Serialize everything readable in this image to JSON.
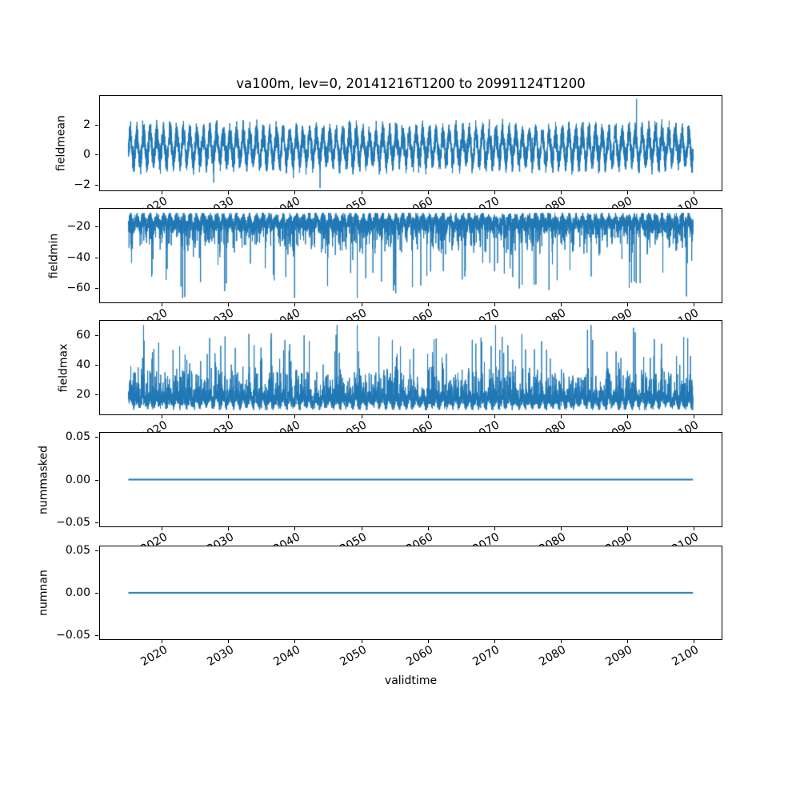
{
  "title": "va100m, lev=0, 20141216T1200 to 20991124T1200",
  "chart_data": {
    "type": "line",
    "title": "va100m, lev=0, 20141216T1200 to 20991124T1200",
    "xlabel": "validtime",
    "legend": "none",
    "grid": false,
    "line_color": "#1f77b4",
    "x_tick_labels": [
      "2020",
      "2030",
      "2040",
      "2050",
      "2060",
      "2070",
      "2080",
      "2090",
      "2100"
    ],
    "x_tick_values": [
      2020,
      2030,
      2040,
      2050,
      2060,
      2070,
      2080,
      2090,
      2100
    ],
    "xlim": [
      2010.7,
      2104.2
    ],
    "x_data_range": [
      2014.96,
      2099.9
    ],
    "x_tick_rotation_deg": 30,
    "n_points": 8000,
    "subplots": [
      {
        "ylabel": "fieldmean",
        "ytick_values": [
          -2,
          0,
          2
        ],
        "ytick_labels": [
          "−2",
          "0",
          "2"
        ],
        "ylim": [
          -2.4,
          3.95
        ],
        "series": {
          "kind": "seasonal_noise",
          "seed": 11,
          "base": 0.5,
          "seasonal_amp": 0.9,
          "noise_amp": 1.05,
          "med_prob": 0.012,
          "med_scale": 0.9,
          "med_signed": true,
          "big_prob": 0,
          "big_base": 0,
          "big_scale": 0,
          "clip": [
            -2.25,
            3.75
          ],
          "extremes": [
            [
              2091.4,
              3.75
            ],
            [
              2043.8,
              -2.25
            ]
          ]
        }
      },
      {
        "ylabel": "fieldmin",
        "ytick_values": [
          -60,
          -40,
          -20
        ],
        "ytick_labels": [
          "−60",
          "−40",
          "−20"
        ],
        "ylim": [
          -69.4,
          -8.3
        ],
        "series": {
          "kind": "seasonal_noise",
          "seed": 22,
          "base": -17.5,
          "seasonal_amp": 2.5,
          "noise_amp": 6.5,
          "med_prob": 0.09,
          "med_scale": -17,
          "med_signed": false,
          "big_prob": 0.008,
          "big_base": -24,
          "big_scale": -20,
          "clip": [
            -66.5,
            -11
          ],
          "extremes": [
            [
              2049.4,
              -66.5
            ],
            [
              2098.9,
              -65.5
            ],
            [
              2090.3,
              -60
            ],
            [
              2055.2,
              -63.5
            ],
            [
              2029.7,
              -57
            ],
            [
              2036.9,
              -55
            ],
            [
              2076.0,
              -58
            ]
          ]
        }
      },
      {
        "ylabel": "fieldmax",
        "ytick_values": [
          20,
          40,
          60
        ],
        "ytick_labels": [
          "20",
          "40",
          "60"
        ],
        "ylim": [
          6.8,
          69.8
        ],
        "series": {
          "kind": "seasonal_noise",
          "seed": 33,
          "base": 17,
          "seasonal_amp": 2.5,
          "noise_amp": 6.5,
          "med_prob": 0.13,
          "med_scale": 19,
          "med_signed": false,
          "big_prob": 0.009,
          "big_base": 24,
          "big_scale": 18,
          "clip": [
            9.8,
            66.9
          ],
          "extremes": [
            [
              2049.4,
              66.9
            ],
            [
              2033.1,
              61
            ],
            [
              2041.4,
              60
            ],
            [
              2066.7,
              57
            ],
            [
              2071.2,
              59
            ],
            [
              2091.2,
              62
            ],
            [
              2098.5,
              59
            ],
            [
              2023.5,
              47
            ]
          ]
        }
      },
      {
        "ylabel": "nummasked",
        "ytick_values": [
          -0.05,
          0,
          0.05
        ],
        "ytick_labels": [
          "−0.05",
          "0.00",
          "0.05"
        ],
        "ylim": [
          -0.055,
          0.055
        ],
        "series": {
          "kind": "constant",
          "value": 0
        }
      },
      {
        "ylabel": "numnan",
        "ytick_values": [
          -0.05,
          0,
          0.05
        ],
        "ytick_labels": [
          "−0.05",
          "0.00",
          "0.05"
        ],
        "ylim": [
          -0.055,
          0.055
        ],
        "series": {
          "kind": "constant",
          "value": 0
        }
      }
    ]
  }
}
